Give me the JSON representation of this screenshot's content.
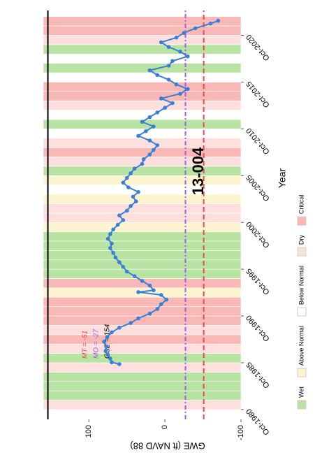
{
  "chart_data": {
    "type": "line",
    "title": "13-004",
    "x_label": "Year",
    "y_label": "GWE (ft NAVD 88)",
    "xlim": [
      1979.7,
      2023.4
    ],
    "xticks": [
      {
        "value": 1980.75,
        "label": "Oct-1980"
      },
      {
        "value": 1985.75,
        "label": "Oct-1985"
      },
      {
        "value": 1990.75,
        "label": "Oct-1990"
      },
      {
        "value": 1995.75,
        "label": "Oct-1995"
      },
      {
        "value": 2000.75,
        "label": "Oct-2000"
      },
      {
        "value": 2005.75,
        "label": "Oct-2005"
      },
      {
        "value": 2010.75,
        "label": "Oct-2010"
      },
      {
        "value": 2015.75,
        "label": "Oct-2015"
      },
      {
        "value": 2020.75,
        "label": "Oct-2020"
      }
    ],
    "ylim": [
      -100,
      160
    ],
    "yticks": [
      -100,
      0,
      100
    ],
    "series": [
      {
        "name": "GWE",
        "color": "#3a7fd5",
        "x": [
          1985.6,
          1985.8,
          1986.2,
          1986.6,
          1987,
          1987.5,
          1988,
          1988.5,
          1989,
          1989.5,
          1990,
          1990.5,
          1991,
          1991.5,
          1992,
          1992.5,
          1993,
          1993.3,
          1993.5,
          1994,
          1994.5,
          1995,
          1995.5,
          1996,
          1996.5,
          1997,
          1997.5,
          1998,
          1998.5,
          1999,
          1999.5,
          2000,
          2000.5,
          2001,
          2001.5,
          2002,
          2002.5,
          2003,
          2003.5,
          2004,
          2004.5,
          2005,
          2005.5,
          2006,
          2006.5,
          2007,
          2007.5,
          2008,
          2008.5,
          2009,
          2009.5,
          2010,
          2010.5,
          2011,
          2011.5,
          2012,
          2012.5,
          2013,
          2013.5,
          2014,
          2014.5,
          2015,
          2015.5,
          2016,
          2016.5,
          2017,
          2017.5,
          2018,
          2018.5,
          2019,
          2019.5,
          2020,
          2020.5,
          2021,
          2021.5,
          2022,
          2022.3
        ],
        "values": [
          60,
          70,
          72,
          75,
          78,
          77,
          80,
          76,
          70,
          60,
          45,
          35,
          20,
          10,
          5,
          -2,
          5,
          35,
          15,
          20,
          30,
          40,
          50,
          55,
          60,
          65,
          68,
          72,
          70,
          75,
          72,
          68,
          62,
          55,
          60,
          50,
          45,
          38,
          42,
          35,
          48,
          55,
          50,
          45,
          40,
          30,
          28,
          20,
          15,
          10,
          20,
          35,
          25,
          15,
          30,
          20,
          10,
          0,
          -10,
          5,
          -20,
          -30,
          -15,
          -5,
          10,
          20,
          -5,
          -10,
          -30,
          -20,
          -5,
          5,
          -15,
          -25,
          -40,
          -60,
          -70
        ]
      }
    ],
    "hlines": [
      {
        "value": 154,
        "label": "GSE = 154",
        "color": "#000000"
      },
      {
        "value": -27,
        "label": "MO = -27",
        "color": "#9b5de5"
      },
      {
        "value": -51,
        "label": "MT = -51",
        "color": "#e84a4a"
      }
    ],
    "legend": [
      {
        "label": "Wet",
        "color": "#b9e3a3"
      },
      {
        "label": "Above Normal",
        "color": "#fbf4cf"
      },
      {
        "label": "Below Normal",
        "color": "#ffffff"
      },
      {
        "label": "Dry",
        "color": "#fde0de"
      },
      {
        "label": "Critical",
        "color": "#f8b9b6"
      }
    ],
    "water_years": {
      "x": [
        1980.75,
        1981.75,
        1982.75,
        1983.75,
        1984.75,
        1985.75,
        1986.75,
        1987.75,
        1988.75,
        1989.75,
        1990.75,
        1991.75,
        1992.75,
        1993.75,
        1994.75,
        1995.75,
        1996.75,
        1997.75,
        1998.75,
        1999.75,
        2000.75,
        2001.75,
        2002.75,
        2003.75,
        2004.75,
        2005.75,
        2006.75,
        2007.75,
        2008.75,
        2009.75,
        2010.75,
        2011.75,
        2012.75,
        2013.75,
        2014.75,
        2015.75,
        2016.75,
        2017.75,
        2018.75,
        2019.75,
        2020.75,
        2021.75
      ],
      "types": [
        "Dry",
        "Wet",
        "Wet",
        "Wet",
        "Dry",
        "Wet",
        "Dry",
        "Critical",
        "Dry",
        "Critical",
        "Critical",
        "Critical",
        "Above Normal",
        "Critical",
        "Wet",
        "Wet",
        "Wet",
        "Wet",
        "Wet",
        "Above Normal",
        "Dry",
        "Dry",
        "Above Normal",
        "Below Normal",
        "Above Normal",
        "Wet",
        "Dry",
        "Critical",
        "Dry",
        "Below Normal",
        "Wet",
        "Below Normal",
        "Dry",
        "Critical",
        "Critical",
        "Below Normal",
        "Wet",
        "Below Normal",
        "Wet",
        "Dry",
        "Critical",
        "Critical"
      ]
    }
  }
}
